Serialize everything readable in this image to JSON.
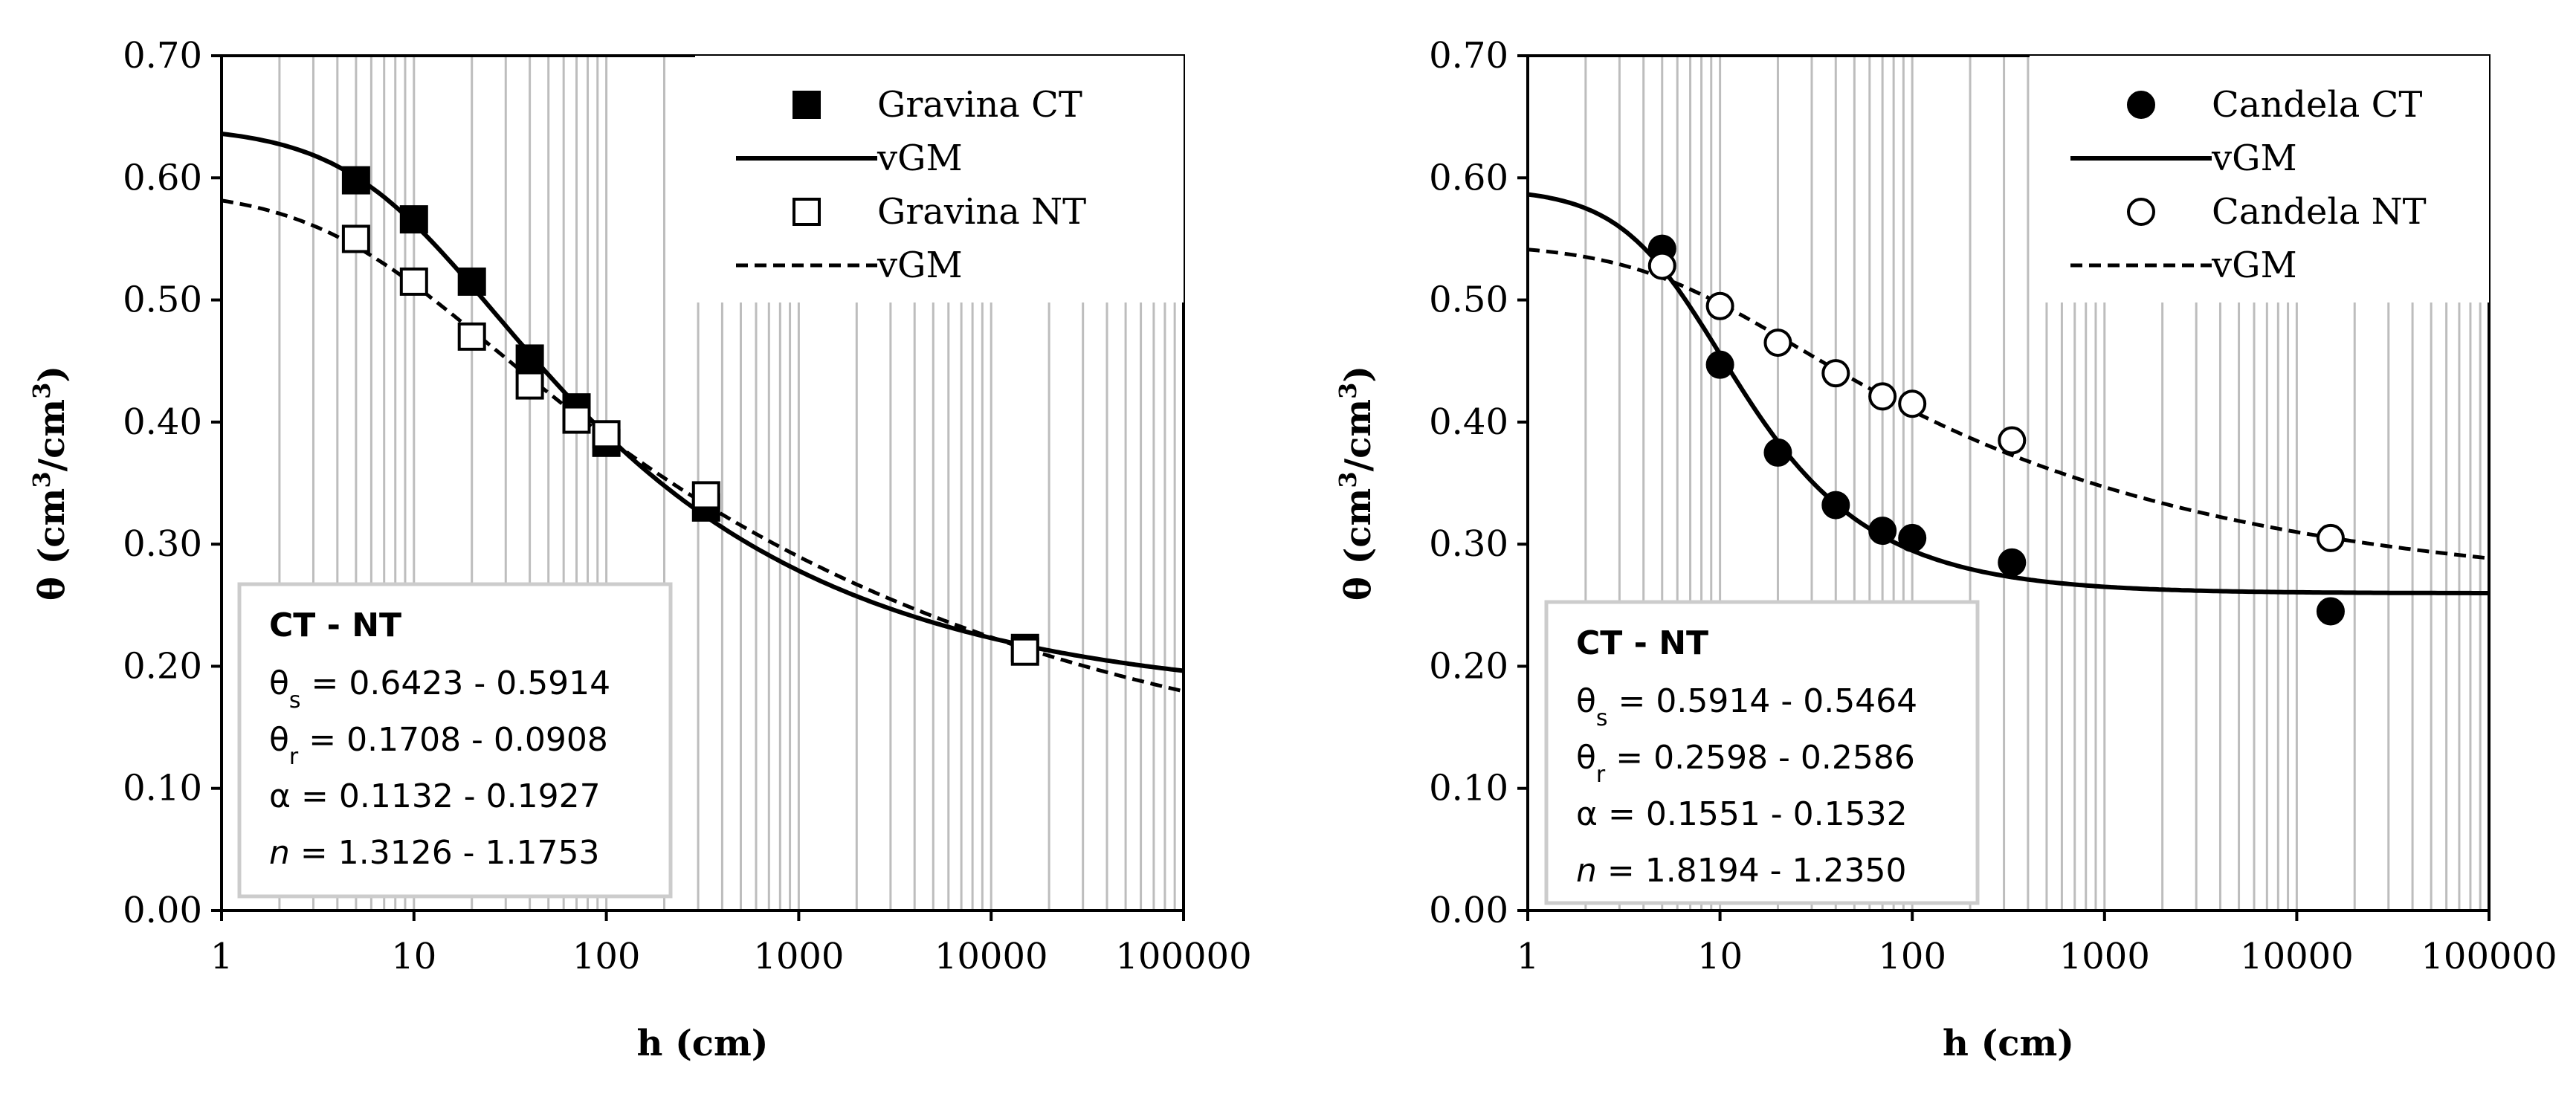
{
  "chart_data": [
    {
      "type": "scatter",
      "x_scale": "log",
      "xlabel": "h (cm)",
      "ylabel": "θ (cm³/cm³)",
      "ylabel_parts": {
        "base": "θ (cm",
        "sup1": "3",
        "mid": "/cm",
        "sup2": "3",
        "end": ")"
      },
      "xlim": [
        1,
        100000
      ],
      "ylim": [
        0,
        0.7
      ],
      "x_ticks": [
        "1",
        "10",
        "100",
        "1000",
        "10000",
        "100000"
      ],
      "y_ticks": [
        "0.00",
        "0.10",
        "0.20",
        "0.30",
        "0.40",
        "0.50",
        "0.60",
        "0.70"
      ],
      "grid": "vertical-minor",
      "legend_position": "top-right",
      "series": [
        {
          "name": "Gravina CT",
          "kind": "points",
          "marker": "square-filled",
          "x": [
            5,
            10,
            20,
            40,
            70,
            100,
            330,
            15000
          ],
          "y": [
            0.598,
            0.566,
            0.515,
            0.452,
            0.412,
            0.383,
            0.33,
            0.215
          ]
        },
        {
          "name": "vGM",
          "kind": "curve",
          "style": "solid",
          "params": {
            "theta_s": 0.6423,
            "theta_r": 0.1708,
            "alpha": 0.1132,
            "n": 1.3126
          }
        },
        {
          "name": "Gravina NT",
          "kind": "points",
          "marker": "square-open",
          "x": [
            5,
            10,
            20,
            40,
            70,
            100,
            330,
            15000
          ],
          "y": [
            0.55,
            0.515,
            0.47,
            0.43,
            0.402,
            0.39,
            0.34,
            0.212
          ]
        },
        {
          "name": "vGM",
          "kind": "curve",
          "style": "dashed",
          "params": {
            "theta_s": 0.5914,
            "theta_r": 0.0908,
            "alpha": 0.1927,
            "n": 1.1753
          }
        }
      ],
      "annotation": {
        "title": "CT - NT",
        "lines": [
          {
            "sym": "θ",
            "sub": "s",
            "val": " = 0.6423 - 0.5914"
          },
          {
            "sym": "θ",
            "sub": "r",
            "val": " = 0.1708 - 0.0908"
          },
          {
            "sym": "α",
            "sub": "",
            "val": " = 0.1132 - 0.1927"
          },
          {
            "sym": "n",
            "sub": "",
            "val": " = 1.3126 - 1.1753",
            "italic": true
          }
        ]
      }
    },
    {
      "type": "scatter",
      "x_scale": "log",
      "xlabel": "h (cm)",
      "ylabel": "θ (cm³/cm³)",
      "ylabel_parts": {
        "base": "θ (cm",
        "sup1": "3",
        "mid": "/cm",
        "sup2": "3",
        "end": ")"
      },
      "xlim": [
        1,
        100000
      ],
      "ylim": [
        0,
        0.7
      ],
      "x_ticks": [
        "1",
        "10",
        "100",
        "1000",
        "10000",
        "100000"
      ],
      "y_ticks": [
        "0.00",
        "0.10",
        "0.20",
        "0.30",
        "0.40",
        "0.50",
        "0.60",
        "0.70"
      ],
      "grid": "vertical-minor",
      "legend_position": "top-right",
      "series": [
        {
          "name": "Candela CT",
          "kind": "points",
          "marker": "circle-filled",
          "x": [
            5,
            10,
            20,
            40,
            70,
            100,
            330,
            15000
          ],
          "y": [
            0.542,
            0.447,
            0.375,
            0.332,
            0.311,
            0.305,
            0.285,
            0.245
          ]
        },
        {
          "name": "vGM",
          "kind": "curve",
          "style": "solid",
          "params": {
            "theta_s": 0.5914,
            "theta_r": 0.2598,
            "alpha": 0.1551,
            "n": 1.8194
          }
        },
        {
          "name": "Candela NT",
          "kind": "points",
          "marker": "circle-open",
          "x": [
            5,
            10,
            20,
            40,
            70,
            100,
            330,
            15000
          ],
          "y": [
            0.528,
            0.495,
            0.465,
            0.44,
            0.421,
            0.415,
            0.385,
            0.305
          ]
        },
        {
          "name": "vGM",
          "kind": "curve",
          "style": "dashed",
          "params": {
            "theta_s": 0.5464,
            "theta_r": 0.2586,
            "alpha": 0.1532,
            "n": 1.235
          }
        }
      ],
      "annotation": {
        "title": "CT - NT",
        "lines": [
          {
            "sym": "θ",
            "sub": "s",
            "val": " = 0.5914 - 0.5464"
          },
          {
            "sym": "θ",
            "sub": "r",
            "val": " = 0.2598 - 0.2586"
          },
          {
            "sym": "α",
            "sub": "",
            "val": " = 0.1551 - 0.1532"
          },
          {
            "sym": "n",
            "sub": "",
            "val": " = 1.8194 - 1.2350",
            "italic": true
          }
        ]
      }
    }
  ]
}
